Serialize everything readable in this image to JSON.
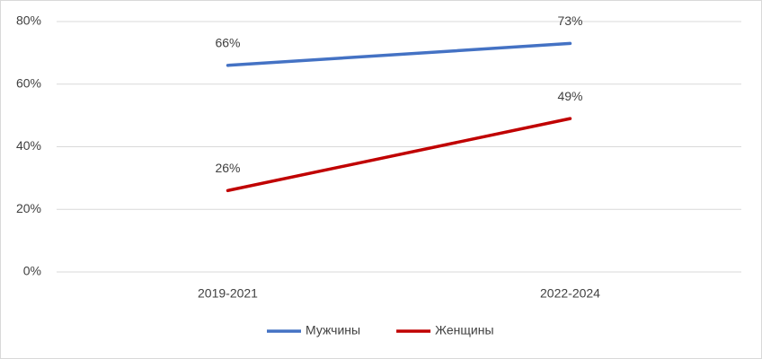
{
  "chart_data": {
    "type": "line",
    "categories": [
      "2019-2021",
      "2022-2024"
    ],
    "series": [
      {
        "name": "Мужчины",
        "color": "#4472c4",
        "values": [
          66,
          73
        ],
        "value_labels": [
          "66%",
          "73%"
        ]
      },
      {
        "name": "Женщины",
        "color": "#c00000",
        "values": [
          26,
          49
        ],
        "value_labels": [
          "26%",
          "49%"
        ]
      }
    ],
    "ylim": [
      0,
      80
    ],
    "yticks": [
      {
        "value": 0,
        "label": "0%"
      },
      {
        "value": 20,
        "label": "20%"
      },
      {
        "value": 40,
        "label": "40%"
      },
      {
        "value": 60,
        "label": "60%"
      },
      {
        "value": 80,
        "label": "80%"
      }
    ],
    "grid": true,
    "legend": "bottom"
  }
}
